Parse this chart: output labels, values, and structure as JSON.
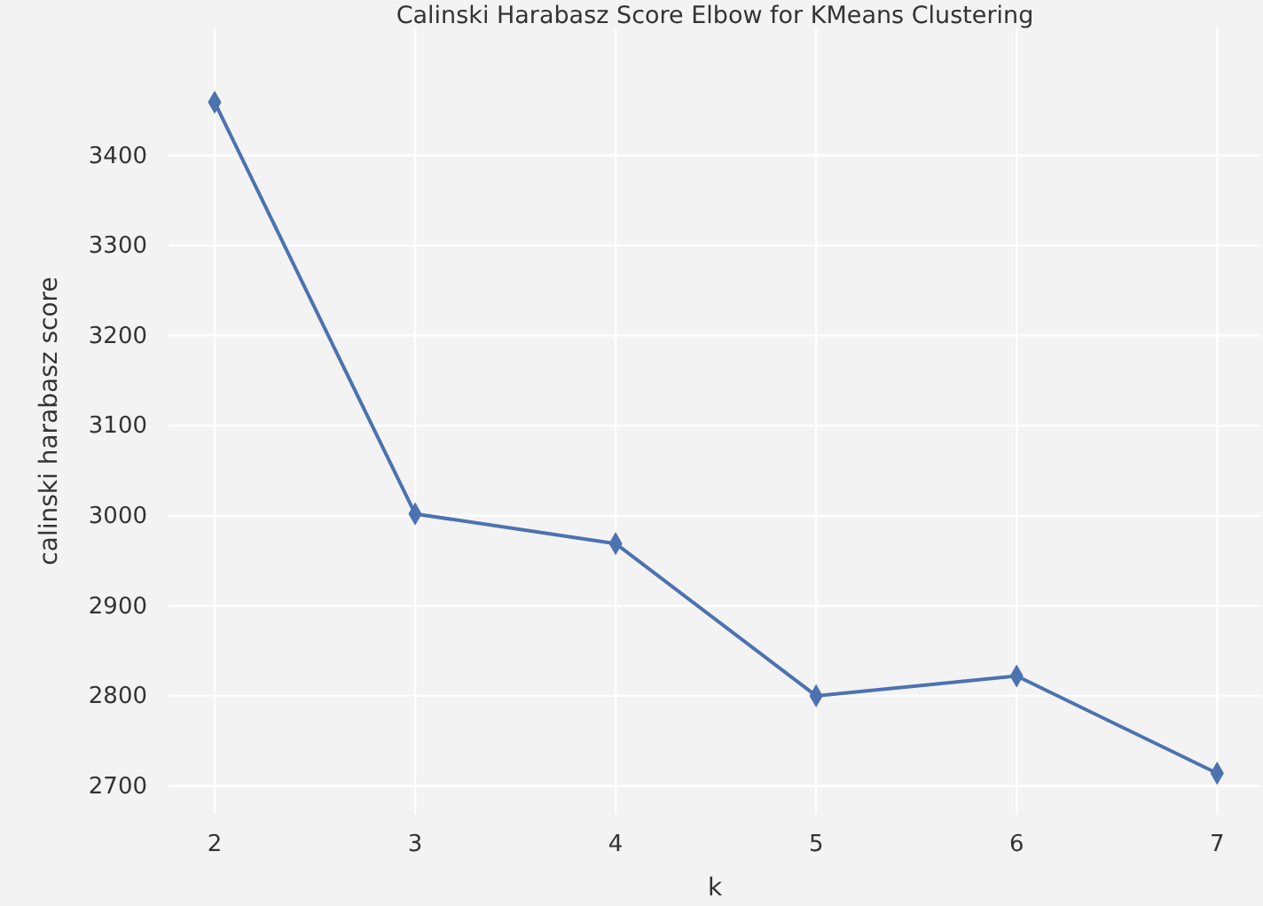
{
  "chart_data": {
    "type": "line",
    "title": "Calinski Harabasz Score Elbow for KMeans Clustering",
    "xlabel": "k",
    "ylabel": "calinski harabasz score",
    "x": [
      2,
      3,
      4,
      5,
      6,
      7
    ],
    "series": [
      {
        "color": "#4c72b0",
        "values": [
          3459,
          3002,
          2969,
          2800,
          2822,
          2714
        ]
      }
    ],
    "xlim": [
      1.77,
      7.22
    ],
    "xticks": [
      2,
      3,
      4,
      5,
      6,
      7
    ],
    "ylim": [
      2669,
      3541
    ],
    "yticks": [
      2700,
      2800,
      2900,
      3000,
      3100,
      3200,
      3300,
      3400
    ],
    "grid": true,
    "marker": "diamond",
    "line_style": "solid"
  }
}
